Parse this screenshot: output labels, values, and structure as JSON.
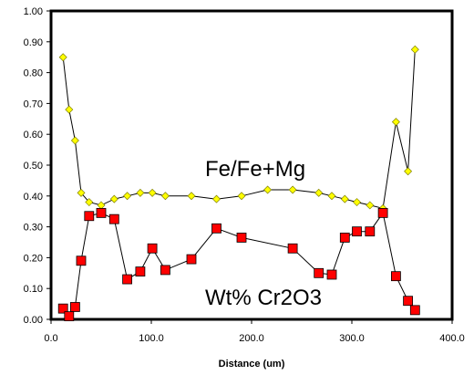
{
  "chart_data": {
    "type": "scatter",
    "title": "",
    "xlabel": "Distance (um)",
    "ylabel": "",
    "xlim": [
      0,
      400
    ],
    "ylim": [
      0,
      1
    ],
    "x_ticks": [
      "0.0",
      "100.0",
      "200.0",
      "300.0",
      "400.0"
    ],
    "y_ticks": [
      "0.00",
      "0.10",
      "0.20",
      "0.30",
      "0.40",
      "0.50",
      "0.60",
      "0.70",
      "0.80",
      "0.90",
      "1.00"
    ],
    "grid": false,
    "legend": "none",
    "annotations": [
      {
        "text": "Fe/Fe+Mg",
        "series": 0
      },
      {
        "text": "Wt% Cr2O3",
        "series": 1
      }
    ],
    "series": [
      {
        "marker": "diamond",
        "color": "#ffff00",
        "x": [
          12,
          18,
          24,
          30,
          38,
          50,
          63,
          76,
          89,
          101,
          114,
          140,
          165,
          190,
          216,
          241,
          267,
          280,
          293,
          305,
          318,
          331,
          344,
          356,
          363
        ],
        "y": [
          0.85,
          0.68,
          0.58,
          0.41,
          0.38,
          0.37,
          0.39,
          0.4,
          0.41,
          0.41,
          0.4,
          0.4,
          0.39,
          0.4,
          0.42,
          0.42,
          0.41,
          0.4,
          0.39,
          0.38,
          0.37,
          0.36,
          0.64,
          0.48,
          0.875
        ]
      },
      {
        "marker": "square",
        "color": "#ff0000",
        "x": [
          12,
          18,
          24,
          30,
          38,
          50,
          63,
          76,
          89,
          101,
          114,
          140,
          165,
          190,
          241,
          267,
          280,
          293,
          305,
          318,
          331,
          344,
          356,
          363
        ],
        "y": [
          0.035,
          0.01,
          0.04,
          0.19,
          0.335,
          0.345,
          0.325,
          0.13,
          0.155,
          0.23,
          0.16,
          0.195,
          0.295,
          0.265,
          0.23,
          0.15,
          0.145,
          0.265,
          0.285,
          0.285,
          0.345,
          0.14,
          0.06,
          0.03
        ]
      }
    ]
  }
}
